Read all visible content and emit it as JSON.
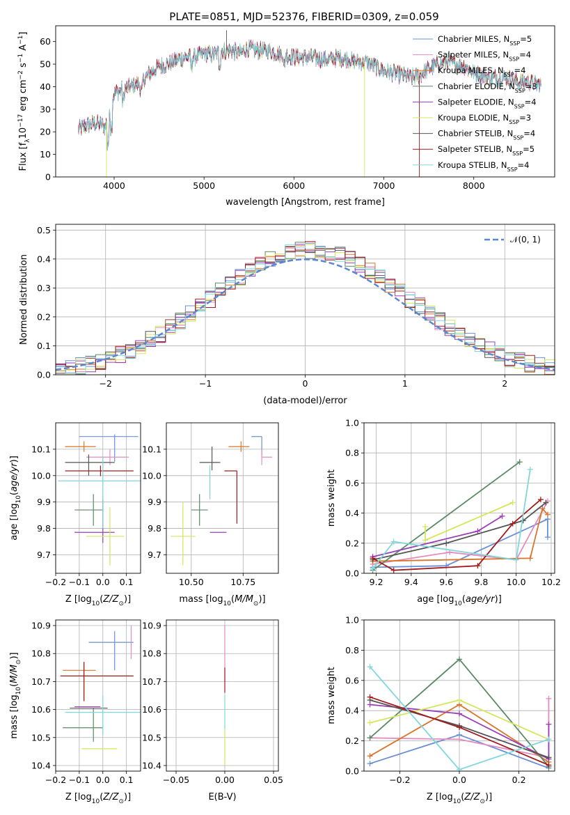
{
  "figure": {
    "title": "PLATE=0851, MJD=52376, FIBERID=0309, z=0.059"
  },
  "chart_data": [
    {
      "id": "spectrum",
      "type": "line",
      "xlabel": "wavelength [Angstrom, rest frame]",
      "ylabel": "Flux [f_λ10^-17 erg cm^-2 s^-1 A^-1]",
      "xlim": [
        3350,
        8900
      ],
      "ylim": [
        0,
        67
      ],
      "xticks": [
        4000,
        5000,
        6000,
        7000,
        8000
      ],
      "yticks": [
        0,
        10,
        20,
        30,
        40,
        50,
        60
      ],
      "grid": false,
      "legend_position": "top-right",
      "spectrum_x": [
        3600,
        3700,
        3800,
        3900,
        4000,
        4100,
        4200,
        4300,
        4400,
        4500,
        4600,
        4700,
        4800,
        4900,
        5000,
        5100,
        5200,
        5300,
        5400,
        5500,
        5600,
        5700,
        5800,
        5900,
        6000,
        6100,
        6200,
        6300,
        6400,
        6500,
        6600,
        6700,
        6800,
        6900,
        7000,
        7100,
        7200,
        7300,
        7400,
        7500,
        7600,
        7700,
        7800,
        7900,
        8000,
        8100,
        8200,
        8300,
        8400,
        8500,
        8600,
        8700
      ],
      "spectrum_y": [
        21,
        23,
        24,
        22,
        37,
        39,
        40,
        42,
        46,
        49,
        50,
        52,
        53,
        53,
        55,
        54,
        56,
        56,
        55,
        57,
        56,
        56,
        55,
        54,
        53,
        53,
        53,
        52,
        52,
        53,
        52,
        51,
        51,
        49,
        47,
        46,
        45,
        44,
        45,
        48,
        50,
        51,
        50,
        49,
        46,
        45,
        44,
        44,
        44,
        42,
        42,
        41
      ],
      "series": [
        {
          "name": "Chabrier MILES, N_SSP=5",
          "color": "#6b8fd6"
        },
        {
          "name": "Salpeter MILES, N_SSP=4",
          "color": "#e38cc0"
        },
        {
          "name": "Kroupa MILES, N_SSP=4",
          "color": "#d9742a"
        },
        {
          "name": "Chabrier ELODIE, N_SSP=3",
          "color": "#5a8a64"
        },
        {
          "name": "Salpeter ELODIE, N_SSP=4",
          "color": "#9a3db8"
        },
        {
          "name": "Kroupa ELODIE, N_SSP=3",
          "color": "#d4e65c"
        },
        {
          "name": "Chabrier STELIB, N_SSP=4",
          "color": "#555555"
        },
        {
          "name": "Salpeter STELIB, N_SSP=5",
          "color": "#a31a1a"
        },
        {
          "name": "Kroupa STELIB, N_SSP=4",
          "color": "#7fd7dc"
        }
      ]
    },
    {
      "id": "residuals",
      "type": "bar",
      "xlabel": "(data-model)/error",
      "ylabel": "Normed distribution",
      "xlim": [
        -2.5,
        2.5
      ],
      "ylim": [
        0,
        0.52
      ],
      "xticks": [
        -2,
        -1,
        0,
        1,
        2
      ],
      "yticks": [
        0.0,
        0.1,
        0.2,
        0.3,
        0.4,
        0.5
      ],
      "grid": true,
      "legend_position": "top-right",
      "reference_curve": {
        "name": "𝒩(0, 1)",
        "color": "#5b86d1"
      },
      "bin_width": 0.1
    },
    {
      "id": "age-vs-Z",
      "type": "scatter",
      "xlabel": "Z [log10(Z/Z⊙)]",
      "ylabel": "age [log10(age/yr)]",
      "xlim": [
        -0.2,
        0.16
      ],
      "ylim": [
        9.63,
        10.2
      ],
      "xticks": [
        -0.2,
        -0.1,
        0.0,
        0.1
      ],
      "yticks": [
        9.7,
        9.8,
        9.9,
        10.0,
        10.1
      ],
      "grid": true,
      "points": [
        {
          "series": 0,
          "x": 0.05,
          "y": 10.148,
          "xerr": [
            0.15,
            0.1
          ],
          "yerr": [
            0.095,
            0.008
          ]
        },
        {
          "series": 1,
          "x": 0.03,
          "y": 10.07,
          "xerr": [
            0.1,
            0.08
          ],
          "yerr": [
            0.03,
            0.03
          ]
        },
        {
          "series": 2,
          "x": -0.08,
          "y": 10.11,
          "xerr": [
            0.08,
            0.05
          ],
          "yerr": [
            0.02,
            0.02
          ]
        },
        {
          "series": 3,
          "x": -0.04,
          "y": 9.87,
          "xerr": [
            0.08,
            0.04
          ],
          "yerr": [
            0.06,
            0.06
          ]
        },
        {
          "series": 4,
          "x": 0.0,
          "y": 9.785,
          "xerr": [
            0.12,
            0.05
          ],
          "yerr": [
            0.04,
            0.125
          ]
        },
        {
          "series": 5,
          "x": 0.03,
          "y": 9.77,
          "xerr": [
            0.1,
            0.06
          ],
          "yerr": [
            0.11,
            0.11
          ]
        },
        {
          "series": 6,
          "x": -0.06,
          "y": 10.05,
          "xerr": [
            0.1,
            0.11
          ],
          "yerr": [
            0.05,
            0.03
          ]
        },
        {
          "series": 7,
          "x": -0.01,
          "y": 10.018,
          "xerr": [
            0.15,
            0.14
          ],
          "yerr": [
            0.02,
            0.02
          ]
        },
        {
          "series": 8,
          "x": 0.0,
          "y": 9.98,
          "xerr": [
            0.19,
            0.16
          ],
          "yerr": [
            0.18,
            0.09
          ]
        }
      ]
    },
    {
      "id": "age-vs-mass",
      "type": "scatter",
      "xlabel": "mass [log10(M/M⊙)]",
      "ylabel": "",
      "xlim": [
        10.38,
        10.92
      ],
      "ylim": [
        9.63,
        10.2
      ],
      "xticks": [
        10.5,
        10.75
      ],
      "yticks": [
        9.7,
        9.8,
        9.9,
        10.0,
        10.1
      ],
      "grid": true,
      "points": [
        {
          "series": 0,
          "x": 10.84,
          "y": 10.148,
          "xerr": [
            0.05,
            0.0
          ],
          "yerr": [
            0.07,
            0.0
          ]
        },
        {
          "series": 1,
          "x": 10.84,
          "y": 10.07,
          "xerr": [
            0.0,
            0.05
          ],
          "yerr": [
            0.03,
            0.03
          ]
        },
        {
          "series": 2,
          "x": 10.74,
          "y": 10.11,
          "xerr": [
            0.06,
            0.04
          ],
          "yerr": [
            0.02,
            0.02
          ]
        },
        {
          "series": 3,
          "x": 10.54,
          "y": 9.87,
          "xerr": [
            0.04,
            0.04
          ],
          "yerr": [
            0.06,
            0.06
          ]
        },
        {
          "series": 4,
          "x": 10.61,
          "y": 9.785,
          "xerr": [
            0.02,
            0.06
          ],
          "yerr": [
            0.0,
            0.0
          ]
        },
        {
          "series": 5,
          "x": 10.46,
          "y": 9.77,
          "xerr": [
            0.06,
            0.06
          ],
          "yerr": [
            0.11,
            0.13
          ]
        },
        {
          "series": 6,
          "x": 10.6,
          "y": 10.05,
          "xerr": [
            0.06,
            0.04
          ],
          "yerr": [
            0.03,
            0.06
          ]
        },
        {
          "series": 7,
          "x": 10.72,
          "y": 10.018,
          "xerr": [
            0.06,
            0.0
          ],
          "yerr": [
            0.2,
            0.0
          ]
        },
        {
          "series": 8,
          "x": 10.59,
          "y": 9.98,
          "xerr": [
            0.0,
            0.0
          ],
          "yerr": [
            0.07,
            0.06
          ]
        }
      ]
    },
    {
      "id": "weight-vs-age",
      "type": "line",
      "xlabel": "age [log10(age/yr)]",
      "ylabel": "mass weight",
      "xlim": [
        9.13,
        10.22
      ],
      "ylim": [
        0,
        1.0
      ],
      "xticks": [
        9.2,
        9.4,
        9.6,
        9.8,
        10.0,
        10.2
      ],
      "yticks": [
        0.0,
        0.2,
        0.4,
        0.6,
        0.8,
        1.0
      ],
      "grid": true,
      "series_points": [
        {
          "series": 0,
          "x": [
            9.18,
            9.6,
            10.18,
            10.18
          ],
          "y": [
            0.04,
            0.05,
            0.36,
            0.24
          ]
        },
        {
          "series": 1,
          "x": [
            9.18,
            9.62,
            10.0,
            10.18
          ],
          "y": [
            0.06,
            0.14,
            0.09,
            0.48
          ]
        },
        {
          "series": 2,
          "x": [
            9.18,
            10.08,
            10.15,
            10.18
          ],
          "y": [
            0.08,
            0.1,
            0.43,
            0.39
          ]
        },
        {
          "series": 3,
          "x": [
            9.18,
            10.02
          ],
          "y": [
            0.02,
            0.74
          ]
        },
        {
          "series": 4,
          "x": [
            9.18,
            9.78,
            9.92
          ],
          "y": [
            0.11,
            0.28,
            0.38
          ]
        },
        {
          "series": 5,
          "x": [
            9.48,
            9.48,
            9.98
          ],
          "y": [
            0.31,
            0.22,
            0.47
          ]
        },
        {
          "series": 6,
          "x": [
            9.18,
            9.6,
            10.04,
            10.17
          ],
          "y": [
            0.09,
            0.2,
            0.35,
            0.47
          ]
        },
        {
          "series": 7,
          "x": [
            9.18,
            9.3,
            9.78,
            9.98,
            10.14
          ],
          "y": [
            0.1,
            0.02,
            0.05,
            0.33,
            0.49
          ]
        },
        {
          "series": 8,
          "x": [
            9.18,
            9.3,
            10.0,
            10.08
          ],
          "y": [
            0.03,
            0.21,
            0.09,
            0.69
          ]
        }
      ]
    },
    {
      "id": "mass-vs-Z",
      "type": "scatter",
      "xlabel": "Z [log10(Z/Z⊙)]",
      "ylabel": "mass [log10(M/M⊙)]",
      "xlim": [
        -0.2,
        0.16
      ],
      "ylim": [
        10.38,
        10.92
      ],
      "xticks": [
        -0.2,
        -0.1,
        0.0,
        0.1
      ],
      "yticks": [
        10.4,
        10.5,
        10.6,
        10.7,
        10.8,
        10.9
      ],
      "grid": true,
      "points": [
        {
          "series": 0,
          "x": 0.05,
          "y": 10.84,
          "xerr": [
            0.11,
            0.08
          ],
          "yerr": [
            0.1,
            0.04
          ]
        },
        {
          "series": 1,
          "x": 0.12,
          "y": 10.84,
          "xerr": [
            0.0,
            0.0
          ],
          "yerr": [
            0.06,
            0.06
          ]
        },
        {
          "series": 2,
          "x": -0.08,
          "y": 10.74,
          "xerr": [
            0.09,
            0.05
          ],
          "yerr": [
            0.11,
            0.03
          ]
        },
        {
          "series": 3,
          "x": -0.04,
          "y": 10.535,
          "xerr": [
            0.13,
            0.04
          ],
          "yerr": [
            0.05,
            0.07
          ]
        },
        {
          "series": 4,
          "x": -0.06,
          "y": 10.61,
          "xerr": [
            0.06,
            0.05
          ],
          "yerr": [
            0.0,
            0.0
          ]
        },
        {
          "series": 5,
          "x": -0.03,
          "y": 10.46,
          "xerr": [
            0.06,
            0.09
          ],
          "yerr": [
            0.0,
            0.0
          ]
        },
        {
          "series": 6,
          "x": -0.05,
          "y": 10.605,
          "xerr": [
            0.09,
            0.07
          ],
          "yerr": [
            0.0,
            0.0
          ]
        },
        {
          "series": 7,
          "x": -0.08,
          "y": 10.72,
          "xerr": [
            0.1,
            0.21
          ],
          "yerr": [
            0.09,
            0.05
          ]
        },
        {
          "series": 8,
          "x": 0.0,
          "y": 10.59,
          "xerr": [
            0.16,
            0.16
          ],
          "yerr": [
            0.08,
            0.06
          ]
        }
      ]
    },
    {
      "id": "mass-vs-EBV",
      "type": "scatter",
      "xlabel": "E(B-V)",
      "ylabel": "",
      "xlim": [
        -0.06,
        0.055
      ],
      "ylim": [
        10.38,
        10.92
      ],
      "xticks": [
        -0.05,
        0.0,
        0.05
      ],
      "yticks": [
        10.4,
        10.5,
        10.6,
        10.7,
        10.8,
        10.9
      ],
      "grid": true,
      "points": [
        {
          "series": 1,
          "x": 0.0,
          "y": 10.8,
          "xerr": [
            0,
            0
          ],
          "yerr": [
            0.1,
            0.1
          ]
        },
        {
          "series": 5,
          "x": 0.0,
          "y": 10.47,
          "xerr": [
            0,
            0
          ],
          "yerr": [
            0.07,
            0.06
          ]
        },
        {
          "series": 7,
          "x": 0.0,
          "y": 10.7,
          "xerr": [
            0,
            0
          ],
          "yerr": [
            0.04,
            0.05
          ]
        },
        {
          "series": 8,
          "x": 0.0,
          "y": 10.6,
          "xerr": [
            0,
            0
          ],
          "yerr": [
            0.07,
            0.05
          ]
        }
      ]
    },
    {
      "id": "weight-vs-Z",
      "type": "line",
      "xlabel": "Z [log10(Z/Z⊙)]",
      "ylabel": "mass weight",
      "xlim": [
        -0.32,
        0.32
      ],
      "ylim": [
        0,
        1.0
      ],
      "xticks": [
        -0.2,
        0.0,
        0.2
      ],
      "yticks": [
        0.0,
        0.2,
        0.4,
        0.6,
        0.8,
        1.0
      ],
      "grid": true,
      "series_points": [
        {
          "series": 0,
          "x": [
            -0.3,
            0.0,
            0.3
          ],
          "y": [
            0.05,
            0.24,
            0.02
          ]
        },
        {
          "series": 1,
          "x": [
            -0.3,
            0.0,
            0.3,
            0.3
          ],
          "y": [
            0.22,
            0.21,
            0.09,
            0.48
          ]
        },
        {
          "series": 2,
          "x": [
            -0.3,
            0.0,
            0.3
          ],
          "y": [
            0.1,
            0.44,
            0.06
          ]
        },
        {
          "series": 3,
          "x": [
            -0.3,
            0.0,
            0.3
          ],
          "y": [
            0.22,
            0.74,
            0.03
          ]
        },
        {
          "series": 4,
          "x": [
            -0.3,
            0.0,
            0.3,
            0.3
          ],
          "y": [
            0.44,
            0.38,
            0.08,
            0.31
          ]
        },
        {
          "series": 5,
          "x": [
            -0.3,
            0.0,
            0.3
          ],
          "y": [
            0.32,
            0.47,
            0.21
          ]
        },
        {
          "series": 6,
          "x": [
            -0.3,
            0.0,
            0.3
          ],
          "y": [
            0.47,
            0.3,
            0.09
          ]
        },
        {
          "series": 7,
          "x": [
            -0.3,
            0.0,
            0.3
          ],
          "y": [
            0.49,
            0.29,
            0.04
          ]
        },
        {
          "series": 8,
          "x": [
            -0.3,
            0.0,
            0.3
          ],
          "y": [
            0.69,
            0.01,
            0.21
          ]
        }
      ]
    }
  ]
}
